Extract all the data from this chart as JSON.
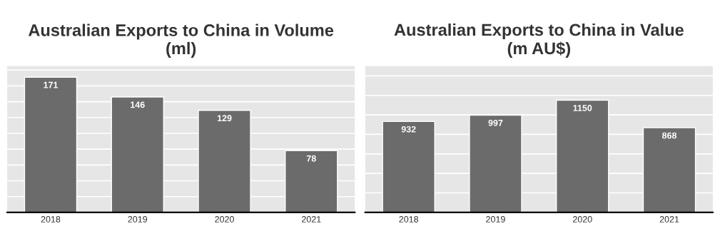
{
  "chart_data": [
    {
      "type": "bar",
      "title": "Australian Exports to China in Volume\n(ml)",
      "categories": [
        "2018",
        "2019",
        "2020",
        "2021"
      ],
      "values": [
        171,
        146,
        129,
        78
      ],
      "color": "#6b6b6b",
      "data_labels": true,
      "grid": "y",
      "tick_labels": "x",
      "ylim": [
        0,
        185
      ],
      "yticks": [
        {
          "value": 0,
          "label": null
        },
        {
          "value": 20,
          "label": null
        },
        {
          "value": 40,
          "label": null
        },
        {
          "value": 60,
          "label": null
        },
        {
          "value": 80,
          "label": null
        },
        {
          "value": 100,
          "label": null
        },
        {
          "value": 120,
          "label": null
        },
        {
          "value": 140,
          "label": null
        },
        {
          "value": 160,
          "label": null
        },
        {
          "value": 180,
          "label": null
        }
      ]
    },
    {
      "type": "bar",
      "title": "Australian Exports to China in Value\n(m AU$)",
      "categories": [
        "2018",
        "2019",
        "2020",
        "2021"
      ],
      "values": [
        932,
        997,
        1150,
        868
      ],
      "color": "#6b6b6b",
      "data_labels": true,
      "grid": "y",
      "tick_labels": "x",
      "ylim": [
        0,
        1500
      ],
      "yticks": [
        {
          "value": 0,
          "label": null
        },
        {
          "value": 200,
          "label": null
        },
        {
          "value": 400,
          "label": null
        },
        {
          "value": 600,
          "label": null
        },
        {
          "value": 800,
          "label": null
        },
        {
          "value": 1000,
          "label": null
        },
        {
          "value": 1200,
          "label": null
        },
        {
          "value": 1400,
          "label": null
        }
      ]
    }
  ]
}
